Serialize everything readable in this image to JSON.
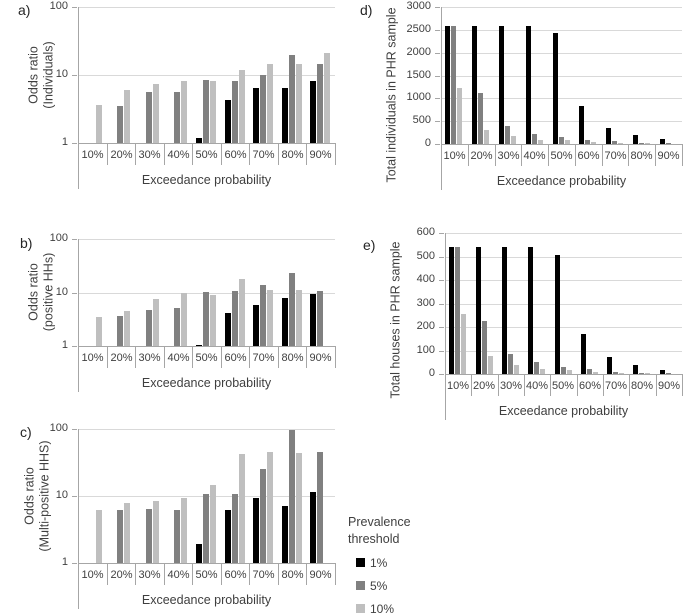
{
  "figure_title": "",
  "legend": {
    "title_lines": [
      "Prevalence",
      "threshold"
    ],
    "items": [
      {
        "label": "1%",
        "color": "#000000"
      },
      {
        "label": "5%",
        "color": "#808080"
      },
      {
        "label": "10%",
        "color": "#bfbfbf"
      }
    ]
  },
  "colors": {
    "black": "#000000",
    "dark_gray": "#808080",
    "light_gray": "#bfbfbf",
    "gridline": "#d9d9d9",
    "axis": "#a6a6a6"
  },
  "chart_data": [
    {
      "id": "a",
      "panel_label": "a)",
      "type": "bar",
      "ylabel_lines": [
        "Odds ratio",
        "(Individuals)"
      ],
      "xlabel": "Exceedance probability",
      "yscale": "log",
      "ylim": [
        1,
        100
      ],
      "yticks": [
        1,
        10,
        100
      ],
      "ytick_labels": [
        "1",
        "10",
        "100"
      ],
      "categories": [
        "10%",
        "20%",
        "30%",
        "40%",
        "50%",
        "60%",
        "70%",
        "80%",
        "90%"
      ],
      "series": [
        {
          "name": "1%",
          "color_key": "black",
          "values": [
            null,
            null,
            null,
            null,
            1.2,
            4.3,
            6.4,
            6.5,
            8.2
          ]
        },
        {
          "name": "5%",
          "color_key": "dark_gray",
          "values": [
            null,
            3.5,
            5.6,
            5.7,
            8.4,
            8.1,
            10,
            19.5,
            14.5
          ]
        },
        {
          "name": "10%",
          "color_key": "light_gray",
          "values": [
            3.6,
            6.0,
            7.4,
            8.3,
            8.3,
            12,
            14.5,
            14.5,
            21
          ]
        }
      ]
    },
    {
      "id": "b",
      "panel_label": "b)",
      "type": "bar",
      "ylabel_lines": [
        "Odds ratio",
        "(positive HHs)"
      ],
      "xlabel": "Exceedance probability",
      "yscale": "log",
      "ylim": [
        1,
        100
      ],
      "yticks": [
        1,
        10,
        100
      ],
      "ytick_labels": [
        "1",
        "10",
        "100"
      ],
      "categories": [
        "10%",
        "20%",
        "30%",
        "40%",
        "50%",
        "60%",
        "70%",
        "80%",
        "90%"
      ],
      "series": [
        {
          "name": "1%",
          "color_key": "black",
          "values": [
            null,
            null,
            null,
            null,
            1.05,
            4.2,
            5.8,
            7.8,
            9.2
          ]
        },
        {
          "name": "5%",
          "color_key": "dark_gray",
          "values": [
            null,
            3.6,
            4.8,
            5.1,
            10.2,
            10.5,
            14,
            23,
            10.8
          ]
        },
        {
          "name": "10%",
          "color_key": "light_gray",
          "values": [
            3.5,
            4.6,
            7.5,
            9.6,
            8.9,
            17.5,
            11.3,
            11.3,
            null
          ]
        }
      ]
    },
    {
      "id": "c",
      "panel_label": "c)",
      "type": "bar",
      "ylabel_lines": [
        "Odds ratio",
        "(Multi-positive HHS)"
      ],
      "xlabel": "Exceedance probability",
      "yscale": "log",
      "ylim": [
        1,
        100
      ],
      "yticks": [
        1,
        10,
        100
      ],
      "ytick_labels": [
        "1",
        "10",
        "100"
      ],
      "categories": [
        "10%",
        "20%",
        "30%",
        "40%",
        "50%",
        "60%",
        "70%",
        "80%",
        "90%"
      ],
      "series": [
        {
          "name": "1%",
          "color_key": "black",
          "values": [
            null,
            null,
            null,
            null,
            1.9,
            6.1,
            9.2,
            7.2,
            11.5
          ]
        },
        {
          "name": "5%",
          "color_key": "dark_gray",
          "values": [
            null,
            6.1,
            6.4,
            6.2,
            10.8,
            10.8,
            25,
            98,
            45
          ]
        },
        {
          "name": "10%",
          "color_key": "light_gray",
          "values": [
            6.2,
            7.8,
            8.4,
            9.3,
            14.5,
            43,
            45,
            44,
            null
          ]
        }
      ]
    },
    {
      "id": "d",
      "panel_label": "d)",
      "type": "bar",
      "ylabel_lines": [
        "Total individuals in PHR sample"
      ],
      "xlabel": "Exceedance probability",
      "yscale": "linear",
      "ylim": [
        0,
        3000
      ],
      "yticks": [
        0,
        500,
        1000,
        1500,
        2000,
        2500,
        3000
      ],
      "ytick_labels": [
        "0",
        "500",
        "1000",
        "1500",
        "2000",
        "2500",
        "3000"
      ],
      "categories": [
        "10%",
        "20%",
        "30%",
        "40%",
        "50%",
        "60%",
        "70%",
        "80%",
        "90%"
      ],
      "series": [
        {
          "name": "1%",
          "color_key": "black",
          "values": [
            2580,
            2580,
            2580,
            2580,
            2420,
            840,
            350,
            190,
            105
          ]
        },
        {
          "name": "5%",
          "color_key": "dark_gray",
          "values": [
            2580,
            1110,
            390,
            215,
            145,
            95,
            60,
            28,
            12
          ]
        },
        {
          "name": "10%",
          "color_key": "light_gray",
          "values": [
            1230,
            300,
            180,
            90,
            85,
            38,
            15,
            8,
            null
          ]
        }
      ]
    },
    {
      "id": "e",
      "panel_label": "e)",
      "type": "bar",
      "ylabel_lines": [
        "Total houses in PHR sample"
      ],
      "xlabel": "Exceedance probability",
      "yscale": "linear",
      "ylim": [
        0,
        600
      ],
      "yticks": [
        0,
        100,
        200,
        300,
        400,
        500,
        600
      ],
      "ytick_labels": [
        "0",
        "100",
        "200",
        "300",
        "400",
        "500",
        "600"
      ],
      "categories": [
        "10%",
        "20%",
        "30%",
        "40%",
        "50%",
        "60%",
        "70%",
        "80%",
        "90%"
      ],
      "series": [
        {
          "name": "1%",
          "color_key": "black",
          "values": [
            540,
            540,
            540,
            540,
            505,
            170,
            73,
            40,
            18
          ]
        },
        {
          "name": "5%",
          "color_key": "dark_gray",
          "values": [
            540,
            225,
            87,
            50,
            28,
            20,
            10,
            5,
            2
          ]
        },
        {
          "name": "10%",
          "color_key": "light_gray",
          "values": [
            255,
            75,
            40,
            20,
            15,
            8,
            3,
            2,
            null
          ]
        }
      ]
    }
  ]
}
